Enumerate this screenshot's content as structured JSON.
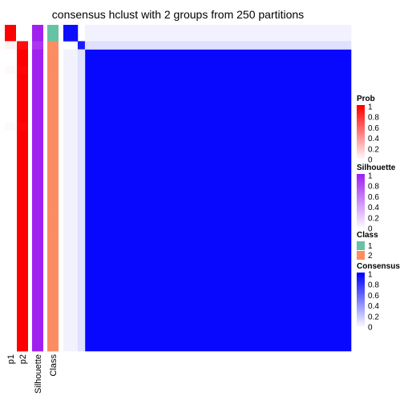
{
  "chart_data": {
    "type": "heatmap",
    "title": "consensus hclust with 2 groups from 250 partitions",
    "annotation_columns": [
      "p1",
      "p2",
      "Silhouette",
      "Class"
    ],
    "n_samples": 40,
    "membership": {
      "p1": [
        1,
        1,
        0.05,
        0,
        0,
        0.02,
        0,
        0,
        0,
        0,
        0,
        0,
        0.02,
        0,
        0,
        0,
        0,
        0,
        0,
        0,
        0,
        0,
        0,
        0,
        0,
        0,
        0,
        0,
        0,
        0,
        0,
        0,
        0,
        0,
        0,
        0,
        0,
        0,
        0,
        0
      ],
      "p2": [
        0,
        0,
        0.95,
        1,
        1,
        0.98,
        1,
        1,
        1,
        1,
        1,
        1,
        0.98,
        1,
        1,
        1,
        1,
        1,
        1,
        1,
        1,
        1,
        1,
        1,
        1,
        1,
        1,
        1,
        1,
        1,
        1,
        1,
        1,
        1,
        1,
        1,
        1,
        1,
        1,
        1
      ]
    },
    "silhouette": [
      1,
      1,
      0.9,
      1,
      1,
      1,
      1,
      1,
      1,
      1,
      1,
      1,
      1,
      1,
      1,
      1,
      1,
      1,
      1,
      1,
      1,
      1,
      1,
      1,
      1,
      1,
      1,
      1,
      1,
      1,
      1,
      1,
      1,
      1,
      1,
      1,
      1,
      1,
      1,
      1
    ],
    "class": [
      1,
      1,
      2,
      2,
      2,
      2,
      2,
      2,
      2,
      2,
      2,
      2,
      2,
      2,
      2,
      2,
      2,
      2,
      2,
      2,
      2,
      2,
      2,
      2,
      2,
      2,
      2,
      2,
      2,
      2,
      2,
      2,
      2,
      2,
      2,
      2,
      2,
      2,
      2,
      2
    ],
    "consensus_blocks": [
      {
        "rows": [
          0,
          2
        ],
        "cols": [
          0,
          2
        ],
        "value": 0.95
      },
      {
        "rows": [
          2,
          3
        ],
        "cols": [
          2,
          3
        ],
        "value": 0.9
      },
      {
        "rows": [
          3,
          40
        ],
        "cols": [
          3,
          40
        ],
        "value": 0.97
      },
      {
        "rows": [
          0,
          2
        ],
        "cols": [
          3,
          40
        ],
        "value": 0.05
      },
      {
        "rows": [
          3,
          40
        ],
        "cols": [
          0,
          2
        ],
        "value": 0.05
      },
      {
        "rows": [
          2,
          3
        ],
        "cols": [
          3,
          40
        ],
        "value": 0.12
      },
      {
        "rows": [
          3,
          40
        ],
        "cols": [
          2,
          3
        ],
        "value": 0.12
      }
    ],
    "legends": [
      {
        "title": "Prob",
        "ticks": [
          "1",
          "0.8",
          "0.6",
          "0.4",
          "0.2",
          "0"
        ],
        "colors": [
          "#ff0000",
          "#ffffff"
        ]
      },
      {
        "title": "Silhouette",
        "ticks": [
          "1",
          "0.8",
          "0.6",
          "0.4",
          "0.2",
          "0"
        ],
        "colors": [
          "#a020f0",
          "#ffffff"
        ]
      },
      {
        "title": "Class",
        "entries": [
          {
            "label": "1",
            "color": "#66c2a5"
          },
          {
            "label": "2",
            "color": "#fc8d62"
          }
        ]
      },
      {
        "title": "Consensus",
        "ticks": [
          "1",
          "0.8",
          "0.6",
          "0.4",
          "0.2",
          "0"
        ],
        "colors": [
          "#0000ff",
          "#ffffff"
        ]
      }
    ]
  }
}
